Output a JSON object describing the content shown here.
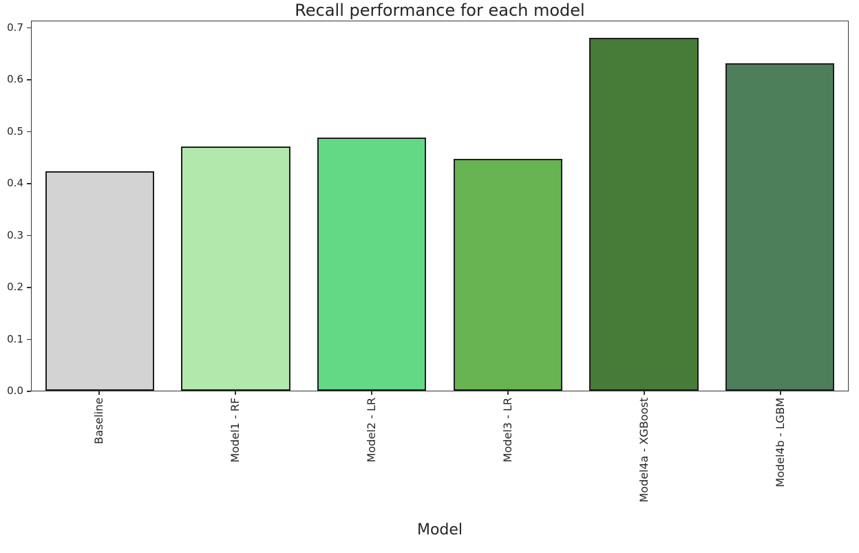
{
  "chart_data": {
    "type": "bar",
    "title": "Recall performance for each model",
    "xlabel": "Model",
    "ylabel": "",
    "categories": [
      "Baseline",
      "Model1 - RF",
      "Model2 - LR",
      "Model3 - LR",
      "Model4a - XGBoost",
      "Model4b - LGBM"
    ],
    "values": [
      0.423,
      0.47,
      0.488,
      0.446,
      0.68,
      0.63
    ],
    "bar_colors": [
      "#d3d3d3",
      "#b1e8ab",
      "#63d985",
      "#68b452",
      "#477b38",
      "#4e7f5b"
    ],
    "bar_edge_color": "#1e1e1e",
    "ylim": [
      0,
      0.714
    ],
    "yticks": [
      0.0,
      0.1,
      0.2,
      0.3,
      0.4,
      0.5,
      0.6,
      0.7
    ],
    "grid": false,
    "legend": null,
    "tick_label_rotation_deg": 90
  }
}
